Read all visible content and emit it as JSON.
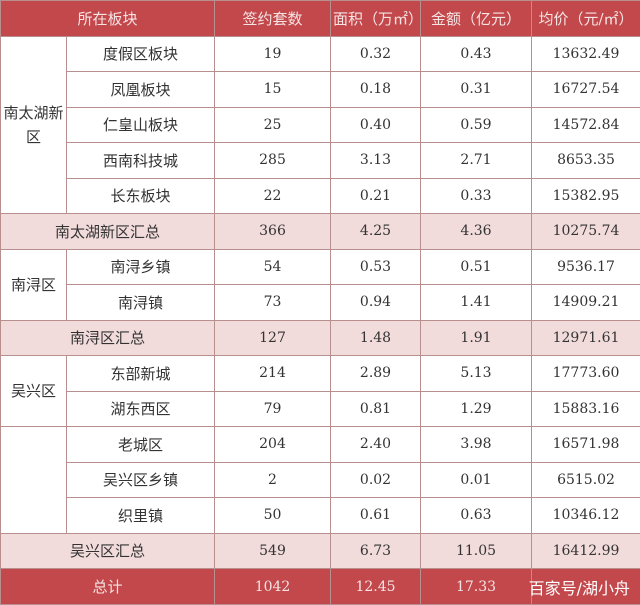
{
  "table": {
    "header": [
      "所在板块",
      "签约套数",
      "面积（万㎡）",
      "金额（亿元）",
      "均价（元/㎡）"
    ],
    "blocks": [
      {
        "region": "南太湖新区",
        "rows": [
          [
            "度假区板块",
            "19",
            "0.32",
            "0.43",
            "13632.49"
          ],
          [
            "凤凰板块",
            "15",
            "0.18",
            "0.31",
            "16727.54"
          ],
          [
            "仁皇山板块",
            "25",
            "0.40",
            "0.59",
            "14572.84"
          ],
          [
            "西南科技城",
            "285",
            "3.13",
            "2.71",
            "8653.35"
          ],
          [
            "长东板块",
            "22",
            "0.21",
            "0.33",
            "15382.95"
          ]
        ]
      },
      {
        "subtotal": [
          "南太湖新区汇总",
          "366",
          "4.25",
          "4.36",
          "10275.74"
        ]
      },
      {
        "region": "南浔区",
        "rows": [
          [
            "南浔乡镇",
            "54",
            "0.53",
            "0.51",
            "9536.17"
          ],
          [
            "南浔镇",
            "73",
            "0.94",
            "1.41",
            "14909.21"
          ]
        ]
      },
      {
        "subtotal": [
          "南浔区汇总",
          "127",
          "1.48",
          "1.91",
          "12971.61"
        ]
      },
      {
        "region": "吴兴区",
        "rows": [
          [
            "东部新城",
            "214",
            "2.89",
            "5.13",
            "17773.60"
          ],
          [
            "湖东西区",
            "79",
            "0.81",
            "1.29",
            "15883.16"
          ]
        ]
      },
      {
        "region": null,
        "rows": [
          [
            "老城区",
            "204",
            "2.40",
            "3.98",
            "16571.98"
          ],
          [
            "吴兴区乡镇",
            "2",
            "0.02",
            "0.01",
            "6515.02"
          ],
          [
            "织里镇",
            "50",
            "0.61",
            "0.63",
            "10346.12"
          ]
        ]
      },
      {
        "subtotal": [
          "吴兴区汇总",
          "549",
          "6.73",
          "11.05",
          "16412.99"
        ]
      }
    ],
    "total": [
      "总计",
      "1042",
      "12.45",
      "17.33"
    ],
    "watermark": "百家号/湖小舟"
  }
}
